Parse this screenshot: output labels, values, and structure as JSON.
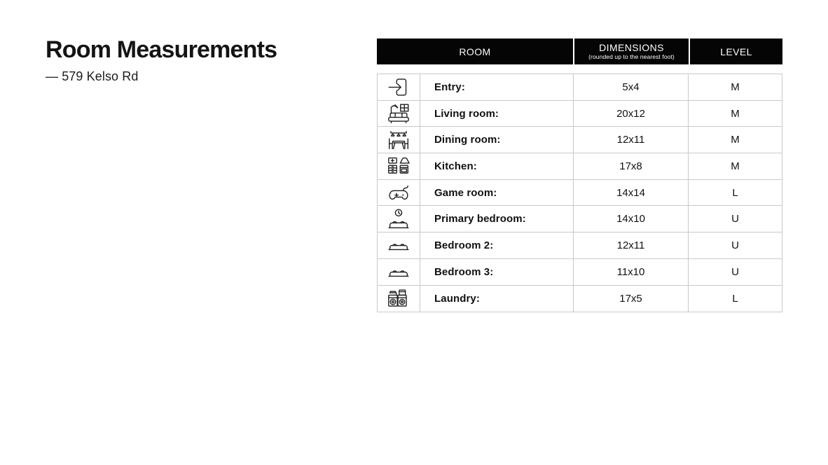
{
  "title": "Room Measurements",
  "subtitle": "— 579 Kelso Rd",
  "table": {
    "columns": [
      {
        "label": "ROOM"
      },
      {
        "label": "DIMENSIONS",
        "note": "(rounded up to the nearest foot)"
      },
      {
        "label": "LEVEL"
      }
    ],
    "rows": [
      {
        "icon": "entry-door-icon",
        "room": "Entry:",
        "dimensions": "5x4",
        "level": "M"
      },
      {
        "icon": "living-room-sofa-icon",
        "room": "Living room:",
        "dimensions": "20x12",
        "level": "M"
      },
      {
        "icon": "dining-table-icon",
        "room": "Dining room:",
        "dimensions": "12x11",
        "level": "M"
      },
      {
        "icon": "kitchen-appliances-icon",
        "room": "Kitchen:",
        "dimensions": "17x8",
        "level": "M"
      },
      {
        "icon": "game-controller-icon",
        "room": "Game room:",
        "dimensions": "14x14",
        "level": "L"
      },
      {
        "icon": "bed-clock-icon",
        "room": "Primary bedroom:",
        "dimensions": "14x10",
        "level": "U"
      },
      {
        "icon": "bed-icon",
        "room": "Bedroom 2:",
        "dimensions": "12x11",
        "level": "U"
      },
      {
        "icon": "bed-icon",
        "room": "Bedroom 3:",
        "dimensions": "11x10",
        "level": "U"
      },
      {
        "icon": "washer-dryer-icon",
        "room": "Laundry:",
        "dimensions": "17x5",
        "level": "L"
      }
    ]
  },
  "colors": {
    "header_bg": "#050505",
    "header_text": "#ffffff",
    "body_border": "#c9c9c9",
    "text": "#111111",
    "background": "#ffffff"
  }
}
